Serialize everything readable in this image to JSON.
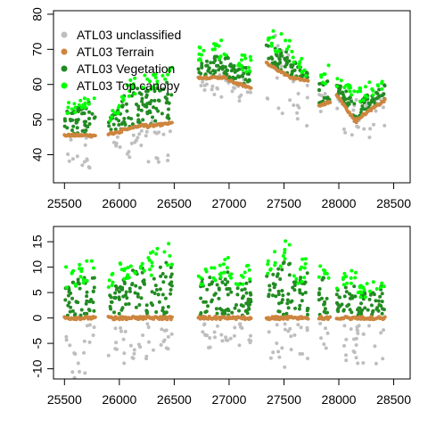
{
  "chart_data": [
    {
      "type": "scatter",
      "xlim": [
        25400,
        28650
      ],
      "ylim": [
        32,
        81
      ],
      "x_ticks": [
        "25500",
        "26000",
        "26500",
        "27000",
        "27500",
        "28000",
        "28500"
      ],
      "y_ticks": [
        "40",
        "50",
        "60",
        "70",
        "80"
      ],
      "grid": false,
      "legend_position": "top-left",
      "legend": [
        {
          "name": "ATL03 unclassified",
          "color": "#BEBEBE"
        },
        {
          "name": "ATL03 Terrain",
          "color": "#CD853F"
        },
        {
          "name": "ATL03 Vegetation",
          "color": "#228B22"
        },
        {
          "name": "ATL03 Top canopy",
          "color": "#00FF00"
        }
      ],
      "segments": [
        {
          "x": [
            25500,
            25780
          ],
          "terrain": [
            45.5,
            45.5
          ],
          "veg_top": [
            52,
            55
          ],
          "canopy_top": [
            55,
            57
          ],
          "unc_low": 34,
          "unc_high": 47
        },
        {
          "x": [
            25900,
            26020
          ],
          "terrain": [
            46,
            46.5
          ],
          "veg_top": [
            50,
            53
          ],
          "canopy_top": [
            52,
            55
          ],
          "unc_low": 40,
          "unc_high": 48
        },
        {
          "x": [
            26020,
            26250
          ],
          "terrain": [
            47,
            48.5
          ],
          "veg_top": [
            56,
            60
          ],
          "canopy_top": [
            60,
            64
          ],
          "unc_low": 38,
          "unc_high": 49
        },
        {
          "x": [
            26250,
            26480
          ],
          "terrain": [
            48,
            49
          ],
          "veg_top": [
            58,
            62
          ],
          "canopy_top": [
            62,
            66
          ],
          "unc_low": 36,
          "unc_high": 50
        },
        {
          "x": [
            26720,
            27000
          ],
          "terrain": [
            62,
            62
          ],
          "veg_top": [
            66,
            69
          ],
          "canopy_top": [
            71,
            74
          ],
          "unc_low": 56,
          "unc_high": 63
        },
        {
          "x": [
            27000,
            27200
          ],
          "terrain": [
            61,
            59
          ],
          "veg_top": [
            66,
            64
          ],
          "canopy_top": [
            70,
            68
          ],
          "unc_low": 55,
          "unc_high": 62
        },
        {
          "x": [
            27340,
            27560
          ],
          "terrain": [
            66,
            62
          ],
          "veg_top": [
            71,
            69
          ],
          "canopy_top": [
            76,
            74
          ],
          "unc_low": 50,
          "unc_high": 79
        },
        {
          "x": [
            27560,
            27720
          ],
          "terrain": [
            62,
            61
          ],
          "veg_top": [
            67,
            63
          ],
          "canopy_top": [
            70,
            66
          ],
          "unc_low": 47,
          "unc_high": 63
        },
        {
          "x": [
            27820,
            27920
          ],
          "terrain": [
            54,
            55
          ],
          "veg_top": [
            60,
            62
          ],
          "canopy_top": [
            66,
            68
          ],
          "unc_low": 51,
          "unc_high": 58
        },
        {
          "x": [
            27980,
            28160
          ],
          "terrain": [
            57,
            49
          ],
          "veg_top": [
            60,
            55
          ],
          "canopy_top": [
            63,
            59
          ],
          "unc_low": 44,
          "unc_high": 56
        },
        {
          "x": [
            28160,
            28420
          ],
          "terrain": [
            50,
            55.5
          ],
          "veg_top": [
            55,
            60
          ],
          "canopy_top": [
            59,
            64
          ],
          "unc_low": 44,
          "unc_high": 57
        }
      ]
    },
    {
      "type": "scatter",
      "xlim": [
        25400,
        28650
      ],
      "ylim": [
        -12,
        18
      ],
      "x_ticks": [
        "25500",
        "26000",
        "26500",
        "27000",
        "27500",
        "28000",
        "28500"
      ],
      "y_ticks": [
        "-10",
        "-5",
        "0",
        "5",
        "10",
        "15"
      ],
      "grid": false,
      "legend_position": "none",
      "colors": {
        "unclassified": "#BEBEBE",
        "terrain": "#CD853F",
        "vegetation": "#228B22",
        "top_canopy": "#00FF00"
      },
      "segments": [
        {
          "x": [
            25500,
            25780
          ],
          "terrain": [
            0,
            0
          ],
          "veg_top": [
            6,
            9
          ],
          "canopy_top": [
            10,
            12
          ],
          "unc_low": -12,
          "unc_high": -1
        },
        {
          "x": [
            25900,
            26020
          ],
          "terrain": [
            0,
            0
          ],
          "veg_top": [
            5,
            7
          ],
          "canopy_top": [
            8,
            12
          ],
          "unc_low": -8,
          "unc_high": -1
        },
        {
          "x": [
            26020,
            26250
          ],
          "terrain": [
            0,
            0
          ],
          "veg_top": [
            8,
            10
          ],
          "canopy_top": [
            11,
            13
          ],
          "unc_low": -10,
          "unc_high": -1
        },
        {
          "x": [
            26250,
            26480
          ],
          "terrain": [
            0,
            0
          ],
          "veg_top": [
            9,
            11
          ],
          "canopy_top": [
            13,
            17
          ],
          "unc_low": -7,
          "unc_high": -1
        },
        {
          "x": [
            26720,
            27000
          ],
          "terrain": [
            0,
            0
          ],
          "veg_top": [
            7,
            9
          ],
          "canopy_top": [
            9,
            12
          ],
          "unc_low": -6,
          "unc_high": -1
        },
        {
          "x": [
            27000,
            27200
          ],
          "terrain": [
            0,
            0
          ],
          "veg_top": [
            6,
            8
          ],
          "canopy_top": [
            9,
            11
          ],
          "unc_low": -6,
          "unc_high": -1
        },
        {
          "x": [
            27340,
            27560
          ],
          "terrain": [
            0,
            0
          ],
          "veg_top": [
            8,
            12
          ],
          "canopy_top": [
            12,
            16
          ],
          "unc_low": -10,
          "unc_high": -1
        },
        {
          "x": [
            27560,
            27720
          ],
          "terrain": [
            0,
            0
          ],
          "veg_top": [
            6,
            9
          ],
          "canopy_top": [
            9,
            13
          ],
          "unc_low": -8,
          "unc_high": -1
        },
        {
          "x": [
            27820,
            27920
          ],
          "terrain": [
            0,
            0
          ],
          "veg_top": [
            7,
            9
          ],
          "canopy_top": [
            10,
            13
          ],
          "unc_low": -6,
          "unc_high": -1
        },
        {
          "x": [
            27980,
            28160
          ],
          "terrain": [
            0,
            0
          ],
          "veg_top": [
            5,
            7
          ],
          "canopy_top": [
            8,
            10
          ],
          "unc_low": -10,
          "unc_high": -1
        },
        {
          "x": [
            28160,
            28420
          ],
          "terrain": [
            0,
            0
          ],
          "veg_top": [
            4,
            6
          ],
          "canopy_top": [
            6,
            9
          ],
          "unc_low": -10,
          "unc_high": -1
        }
      ]
    }
  ],
  "colors": {
    "unclassified": "#BEBEBE",
    "terrain": "#CD853F",
    "vegetation": "#228B22",
    "top_canopy": "#00FF00"
  }
}
